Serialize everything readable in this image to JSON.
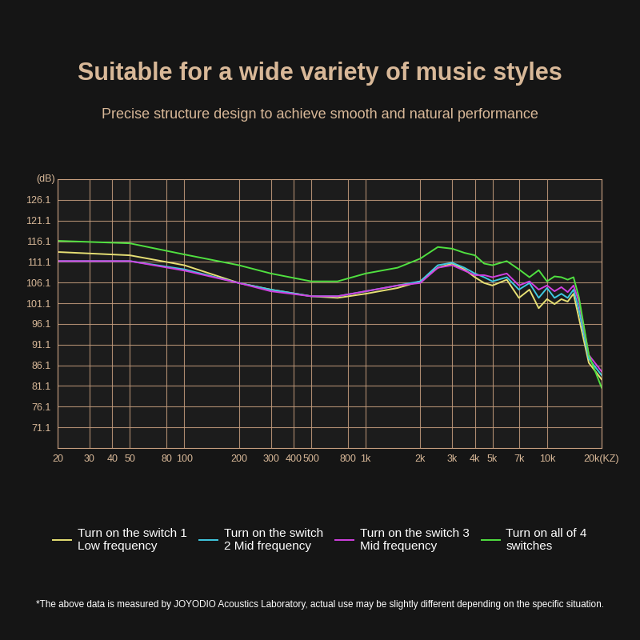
{
  "chart_data": {
    "type": "line",
    "title": "Suitable for a wide variety of music styles",
    "subtitle": "Precise structure design to achieve smooth and natural performance",
    "y_label": "(dB)",
    "footnote": "*The above data is measured by JOYODIO Acoustics Laboratory, actual use may be slightly different depending on the specific situation.",
    "log": "x",
    "grid": true,
    "legend": "lower center",
    "xlim": [
      20,
      20000
    ],
    "xticks": [
      20,
      30,
      40,
      50,
      80,
      100,
      200,
      300,
      400,
      500,
      800,
      {
        "value": 1000,
        "label": "1k"
      },
      {
        "value": 2000,
        "label": "2k"
      },
      {
        "value": 3000,
        "label": "3k"
      },
      {
        "value": 4000,
        "label": "4k"
      },
      {
        "value": 5000,
        "label": "5k"
      },
      {
        "value": 7000,
        "label": "7k"
      },
      {
        "value": 10000,
        "label": "10k"
      },
      {
        "value": 20000,
        "label": "20k(KZ)"
      }
    ],
    "ylim": [
      66.1,
      131.1
    ],
    "yticks": [
      71.1,
      76.1,
      81.1,
      86.1,
      91.1,
      96.1,
      101.1,
      106.1,
      111.1,
      116.1,
      121.1,
      126.1
    ],
    "x": [
      20,
      50,
      100,
      200,
      300,
      500,
      700,
      1000,
      1500,
      2000,
      2500,
      3000,
      3500,
      4000,
      4500,
      5000,
      6000,
      7000,
      8000,
      9000,
      10000,
      11000,
      12000,
      13000,
      14000,
      15000,
      17000,
      20000
    ],
    "series": [
      {
        "name": "Turn on the switch 1\nLow frequency",
        "color": "#e6df74",
        "values": [
          113.5,
          112.7,
          110.3,
          106.0,
          104.4,
          102.8,
          102.4,
          103.4,
          104.8,
          106.4,
          109.7,
          110.7,
          109.3,
          107.4,
          106.0,
          105.4,
          106.8,
          102.4,
          104.4,
          99.9,
          102.1,
          100.9,
          102.1,
          101.5,
          103.4,
          97.5,
          86.7,
          82.7
        ]
      },
      {
        "name": "Turn on the switch\n2 Mid frequency",
        "color": "#40c8e0",
        "values": [
          111.3,
          111.3,
          109.3,
          106.0,
          104.4,
          102.8,
          102.8,
          104.0,
          105.4,
          106.4,
          110.3,
          110.9,
          109.7,
          108.3,
          107.4,
          106.4,
          107.4,
          104.4,
          106.0,
          102.4,
          104.8,
          102.4,
          103.4,
          102.4,
          104.4,
          99.5,
          87.7,
          83.7
        ]
      },
      {
        "name": "Turn on the switch 3\nMid frequency",
        "color": "#d040e0",
        "values": [
          111.3,
          111.3,
          109.0,
          106.0,
          104.0,
          102.8,
          102.8,
          104.0,
          105.4,
          106.0,
          109.7,
          110.3,
          109.0,
          107.9,
          107.9,
          107.4,
          108.3,
          105.4,
          106.4,
          104.4,
          105.4,
          104.0,
          105.0,
          103.8,
          105.4,
          101.5,
          88.6,
          84.6
        ]
      },
      {
        "name": "Turn on all of 4\nswitches",
        "color": "#50e040",
        "values": [
          116.2,
          115.6,
          112.9,
          110.3,
          108.3,
          106.4,
          106.4,
          108.3,
          109.7,
          111.9,
          114.7,
          114.3,
          113.3,
          112.7,
          110.7,
          110.3,
          111.3,
          109.3,
          107.4,
          109.1,
          106.4,
          107.6,
          107.4,
          106.8,
          107.4,
          102.5,
          88.6,
          80.7
        ]
      }
    ]
  }
}
